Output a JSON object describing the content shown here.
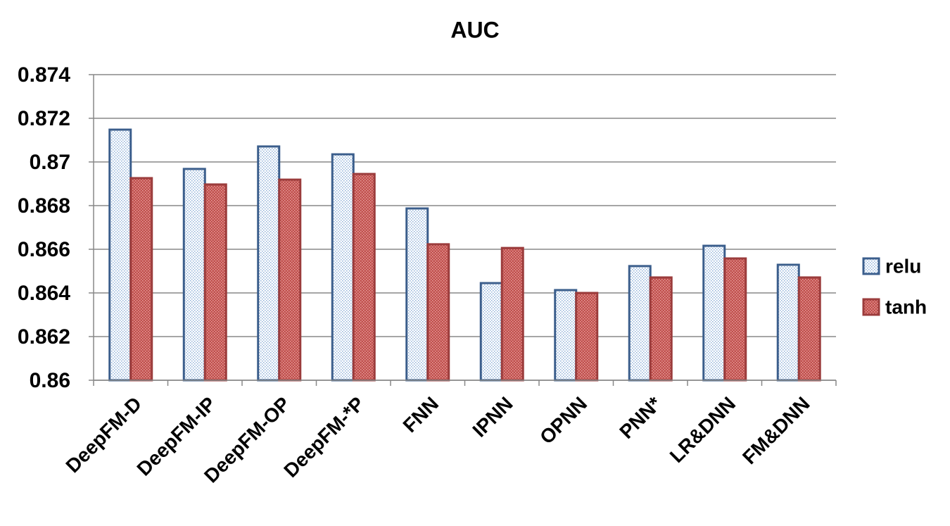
{
  "chart_data": {
    "type": "bar",
    "title": "AUC",
    "categories": [
      "DeepFM-D",
      "DeepFM-IP",
      "DeepFM-OP",
      "DeepFM-*P",
      "FNN",
      "IPNN",
      "OPNN",
      "PNN*",
      "LR&DNN",
      "FM&DNN"
    ],
    "series": [
      {
        "name": "relu",
        "color": "#3b5e8c",
        "values": [
          0.87148,
          0.86968,
          0.87071,
          0.87035,
          0.86787,
          0.86445,
          0.86413,
          0.86523,
          0.86616,
          0.86529
        ]
      },
      {
        "name": "tanh",
        "color": "#9b3c3c",
        "values": [
          0.86926,
          0.86897,
          0.86919,
          0.86945,
          0.86623,
          0.86606,
          0.864,
          0.86471,
          0.86558,
          0.86471
        ]
      }
    ],
    "ylim": [
      0.86,
      0.874
    ],
    "yticks": [
      0.86,
      0.862,
      0.864,
      0.866,
      0.868,
      0.87,
      0.872,
      0.874
    ],
    "grid": true,
    "legend": "right"
  }
}
